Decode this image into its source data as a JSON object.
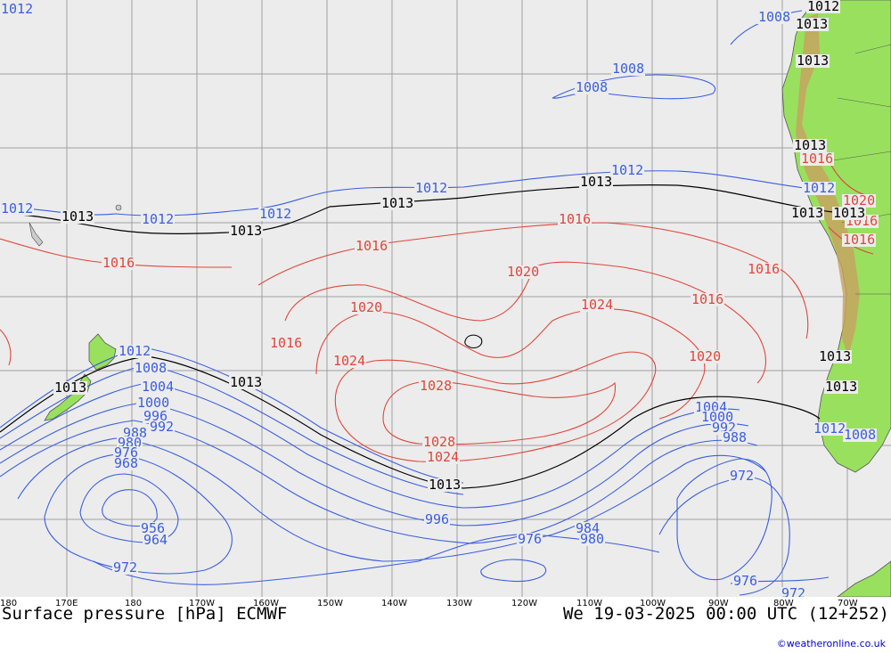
{
  "colors": {
    "ocean": "#ececec",
    "land": "#99e05f",
    "mountains": "#c8a060",
    "grid": "#a0a0a0",
    "low_pressure": "#3a5ee0",
    "high_pressure": "#e0463a",
    "reference": "#000000"
  },
  "map": {
    "projection": "Pacific Ocean, 170E to 70W",
    "longitude_labels": [
      "180",
      "170E",
      "180",
      "170W",
      "160W",
      "150W",
      "140W",
      "130W",
      "120W",
      "110W",
      "100W",
      "90W",
      "80W",
      "70W"
    ],
    "isobars_blue": [
      "1012",
      "1008",
      "1008",
      "1008",
      "1012",
      "1012",
      "1012",
      "1012",
      "1012",
      "1012",
      "1008",
      "1004",
      "1000",
      "996",
      "992",
      "988",
      "980",
      "976",
      "968",
      "956",
      "964",
      "972",
      "996",
      "984",
      "980",
      "976",
      "972",
      "976",
      "972",
      "1004",
      "1000",
      "992",
      "988",
      "1012",
      "1008",
      "1012"
    ],
    "isobars_red": [
      "1016",
      "1016",
      "1016",
      "1016",
      "1016",
      "1020",
      "1020",
      "1020",
      "1024",
      "1024",
      "1028",
      "1028",
      "1024",
      "1016",
      "1016",
      "1016",
      "1016",
      "1020"
    ],
    "isobars_black": [
      "1012",
      "1013",
      "1013",
      "1013",
      "1013",
      "1013",
      "1013",
      "1013",
      "1013",
      "1013",
      "1013",
      "1013",
      "1013",
      "1013",
      "1013"
    ]
  },
  "footer": {
    "title": "Surface pressure [hPa] ECMWF",
    "valid": "We 19-03-2025 00:00 UTC (12+252)",
    "credit": "©weatheronline.co.uk"
  }
}
